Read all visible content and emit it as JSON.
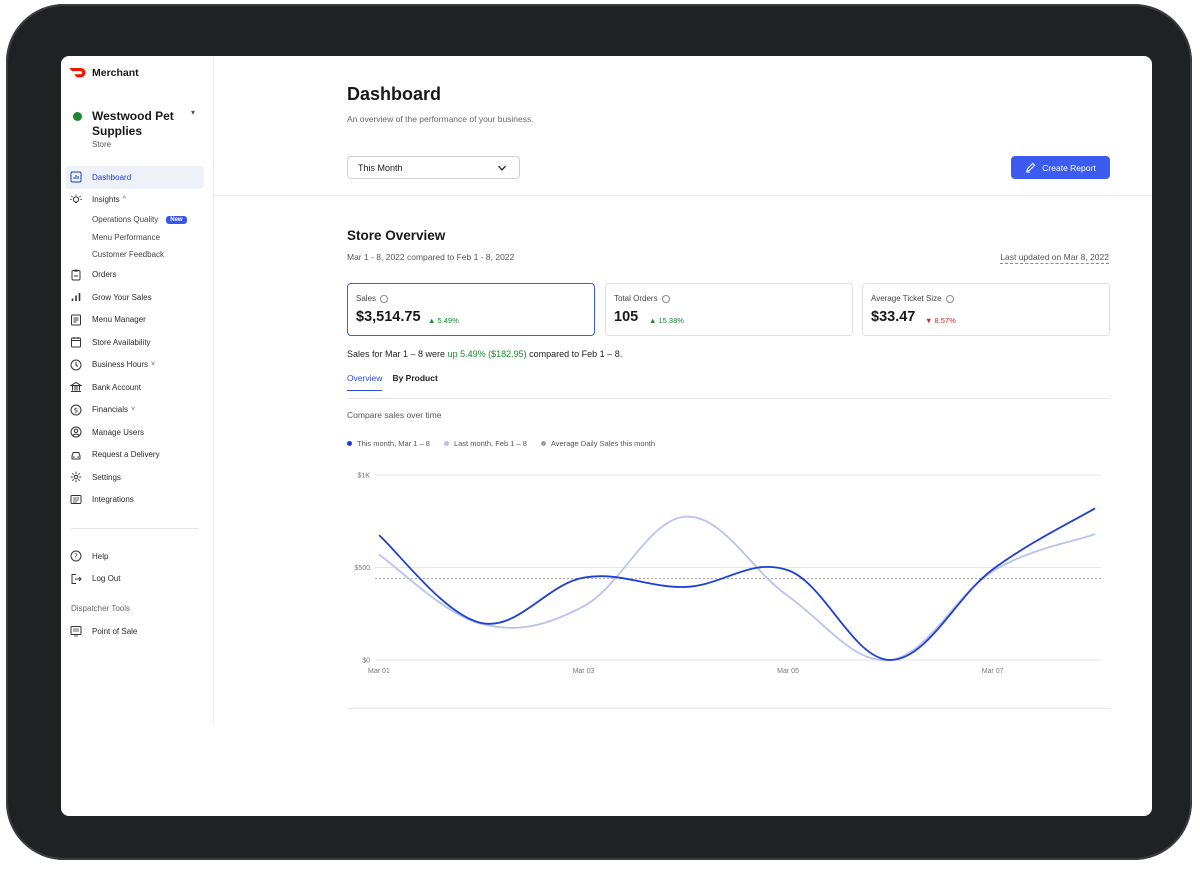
{
  "brand": {
    "name": "Merchant"
  },
  "store": {
    "name": "Westwood Pet Supplies",
    "type": "Store"
  },
  "nav": [
    {
      "label": "Dashboard",
      "icon": "chart-icon",
      "active": true
    },
    {
      "label": "Insights",
      "icon": "lightbulb-icon",
      "caret": "^"
    }
  ],
  "insights_sub": [
    {
      "label": "Operations Quality",
      "badge": "New"
    },
    {
      "label": "Menu Performance"
    },
    {
      "label": "Customer Feedback"
    }
  ],
  "nav_more": [
    {
      "label": "Orders",
      "icon": "clipboard-icon"
    },
    {
      "label": "Grow Your Sales",
      "icon": "bar-chart-icon"
    },
    {
      "label": "Menu Manager",
      "icon": "menu-book-icon"
    },
    {
      "label": "Store Availability",
      "icon": "calendar-icon"
    },
    {
      "label": "Business Hours",
      "icon": "clock-icon",
      "caret": "˅"
    },
    {
      "label": "Bank Account",
      "icon": "bank-icon"
    },
    {
      "label": "Financials",
      "icon": "dollar-icon",
      "caret": "˅"
    },
    {
      "label": "Manage Users",
      "icon": "user-icon"
    },
    {
      "label": "Request a Delivery",
      "icon": "car-icon"
    },
    {
      "label": "Settings",
      "icon": "gear-icon"
    },
    {
      "label": "Integrations",
      "icon": "integrations-icon"
    }
  ],
  "nav_bottom": [
    {
      "label": "Help",
      "icon": "help-icon"
    },
    {
      "label": "Log Out",
      "icon": "logout-icon"
    }
  ],
  "dispatcher": {
    "label": "Dispatcher Tools",
    "items": [
      {
        "label": "Point of Sale",
        "icon": "pos-icon"
      }
    ]
  },
  "header": {
    "title": "Dashboard",
    "subtitle": "An overview of the performance of your business.",
    "period": "This Month",
    "create_report": "Create Report"
  },
  "overview": {
    "title": "Store Overview",
    "date_range": "Mar 1 - 8, 2022 compared to Feb 1 - 8, 2022",
    "last_updated": "Last updated on Mar 8, 2022"
  },
  "metrics": [
    {
      "label": "Sales",
      "value": "$3,514.75",
      "delta": "▲ 5.49%",
      "dir": "up"
    },
    {
      "label": "Total Orders",
      "value": "105",
      "delta": "▲ 15.38%",
      "dir": "up"
    },
    {
      "label": "Average Ticket Size",
      "value": "$33.47",
      "delta": "▼ 8.57%",
      "dir": "down"
    }
  ],
  "sentence": {
    "prefix": "Sales for Mar 1 – 8 were",
    "highlight": "up 5.49% ($182.95)",
    "suffix": "compared to Feb 1 – 8."
  },
  "tabs": [
    {
      "label": "Overview",
      "active": true
    },
    {
      "label": "By Product"
    }
  ],
  "chart_subtitle": "Compare sales over time",
  "colors": {
    "primary": "#3c5cf0",
    "this_month": "#1d3fd6",
    "last_month": "#b7c2f0",
    "average": "#9e9e9e",
    "positive": "#168a2a",
    "negative": "#d02424"
  },
  "chart_data": {
    "type": "line",
    "x_ticks": [
      "Mar 01",
      "Mar 03",
      "Mar 05",
      "Mar 07"
    ],
    "y_ticks": [
      "$1K",
      "$500",
      "$0"
    ],
    "ylim": [
      0,
      1000
    ],
    "grid": true,
    "legend_position": "top-left",
    "series": [
      {
        "name": "This month, Mar 1 – 8",
        "values": [
          675,
          200,
          445,
          395,
          485,
          0,
          490,
          820
        ]
      },
      {
        "name": "Last month, Feb 1 – 8",
        "values": [
          570,
          195,
          290,
          775,
          345,
          0,
          480,
          680
        ]
      },
      {
        "name": "Average Daily Sales this month",
        "values": [
          440,
          440,
          440,
          440,
          440,
          440,
          440,
          440
        ]
      }
    ]
  }
}
